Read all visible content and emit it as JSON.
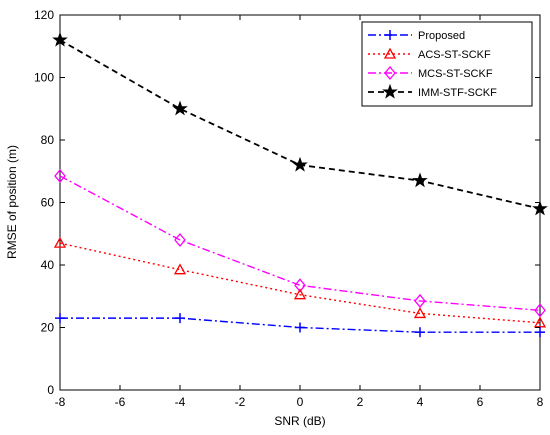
{
  "chart_data": {
    "type": "line",
    "xlabel": "SNR (dB)",
    "ylabel": "RMSE of position (m)",
    "xlim": [
      -8,
      8
    ],
    "ylim": [
      0,
      120
    ],
    "xticks": [
      -8,
      -6,
      -4,
      -2,
      0,
      2,
      4,
      6,
      8
    ],
    "yticks": [
      0,
      20,
      40,
      60,
      80,
      100,
      120
    ],
    "x": [
      -8,
      -4,
      0,
      4,
      8
    ],
    "legend_position": "top-right",
    "grid": false,
    "series": [
      {
        "name": "Proposed",
        "values": [
          23,
          23,
          20,
          18.5,
          18.5
        ],
        "color": "#0000ff",
        "dash": "dash-dot",
        "marker": "plus"
      },
      {
        "name": "ACS-ST-SCKF",
        "values": [
          47,
          38.5,
          30.5,
          24.5,
          21.5
        ],
        "color": "#ff0000",
        "dash": "dotted",
        "marker": "triangle"
      },
      {
        "name": "MCS-ST-SCKF",
        "values": [
          68.5,
          48,
          33.5,
          28.5,
          25.5
        ],
        "color": "#ff00ff",
        "dash": "dash-dot",
        "marker": "diamond"
      },
      {
        "name": "IMM-STF-SCKF",
        "values": [
          112,
          90,
          72,
          67,
          58
        ],
        "color": "#000000",
        "dash": "dashed",
        "marker": "star"
      }
    ]
  }
}
